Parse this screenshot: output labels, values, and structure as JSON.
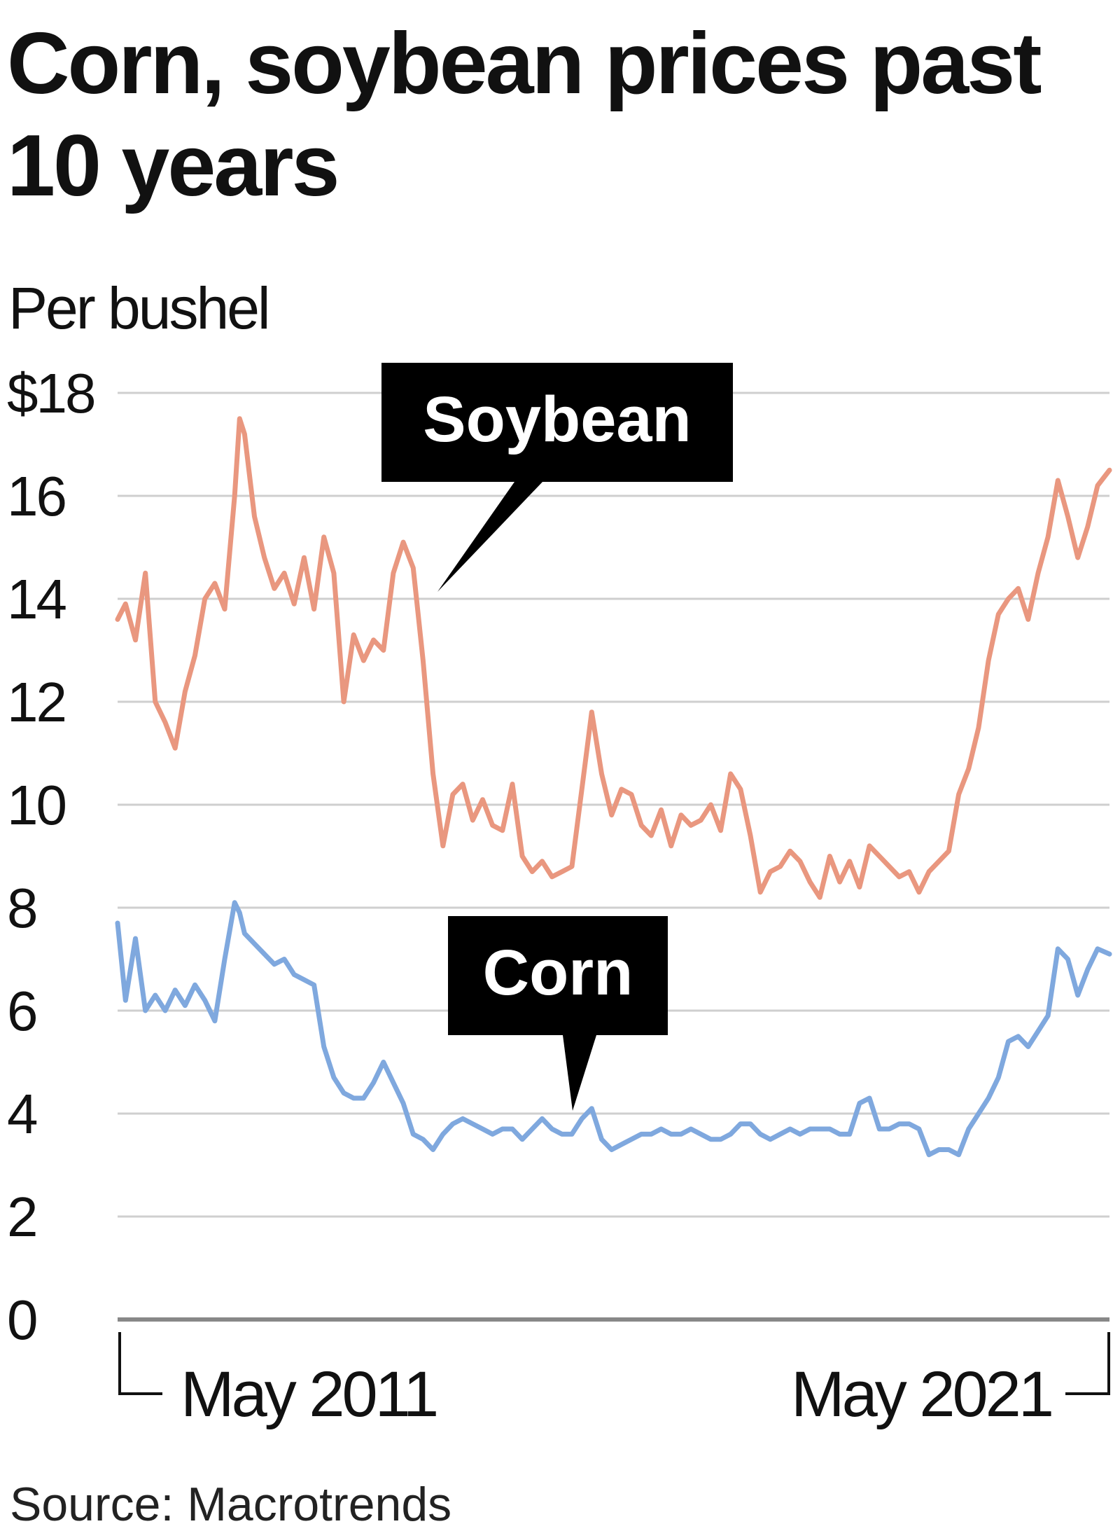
{
  "title": "Corn, soybean prices past 10 years",
  "unit_label": "Per bushel",
  "source": "Source: Macrotrends",
  "colors": {
    "soybean": "#E9977F",
    "corn": "#7FA8DE",
    "grid": "#cfcfcf",
    "callout": "#000000"
  },
  "chart_data": {
    "type": "line",
    "ylim": [
      0,
      18
    ],
    "y_ticks": [
      {
        "value": 18,
        "label": "$18"
      },
      {
        "value": 16,
        "label": "16"
      },
      {
        "value": 14,
        "label": "14"
      },
      {
        "value": 12,
        "label": "12"
      },
      {
        "value": 10,
        "label": "10"
      },
      {
        "value": 8,
        "label": "8"
      },
      {
        "value": 6,
        "label": "6"
      },
      {
        "value": 4,
        "label": "4"
      },
      {
        "value": 2,
        "label": "2"
      },
      {
        "value": 0,
        "label": "0"
      }
    ],
    "xlim": [
      2011.37,
      2021.37
    ],
    "x_labels": [
      "May 2011",
      "May 2021"
    ],
    "grid": true,
    "series": [
      {
        "name": "Soybean",
        "x": [
          2011.37,
          2011.45,
          2011.55,
          2011.65,
          2011.75,
          2011.85,
          2011.95,
          2012.05,
          2012.15,
          2012.25,
          2012.35,
          2012.45,
          2012.55,
          2012.6,
          2012.65,
          2012.75,
          2012.85,
          2012.95,
          2013.05,
          2013.15,
          2013.25,
          2013.35,
          2013.45,
          2013.55,
          2013.65,
          2013.75,
          2013.85,
          2013.95,
          2014.05,
          2014.15,
          2014.25,
          2014.35,
          2014.45,
          2014.55,
          2014.65,
          2014.75,
          2014.85,
          2014.95,
          2015.05,
          2015.15,
          2015.25,
          2015.35,
          2015.45,
          2015.55,
          2015.65,
          2015.75,
          2015.85,
          2015.95,
          2016.05,
          2016.15,
          2016.25,
          2016.35,
          2016.45,
          2016.55,
          2016.65,
          2016.75,
          2016.85,
          2016.95,
          2017.05,
          2017.15,
          2017.25,
          2017.35,
          2017.45,
          2017.55,
          2017.65,
          2017.75,
          2017.85,
          2017.95,
          2018.05,
          2018.15,
          2018.25,
          2018.35,
          2018.45,
          2018.55,
          2018.65,
          2018.75,
          2018.85,
          2018.95,
          2019.05,
          2019.15,
          2019.25,
          2019.35,
          2019.45,
          2019.55,
          2019.65,
          2019.75,
          2019.85,
          2019.95,
          2020.05,
          2020.15,
          2020.25,
          2020.35,
          2020.45,
          2020.55,
          2020.65,
          2020.75,
          2020.85,
          2020.95,
          2021.05,
          2021.15,
          2021.25,
          2021.37
        ],
        "values": [
          13.6,
          13.9,
          13.2,
          14.5,
          12.0,
          11.6,
          11.1,
          12.2,
          12.9,
          14.0,
          14.3,
          13.8,
          16.0,
          17.5,
          17.2,
          15.6,
          14.8,
          14.2,
          14.5,
          13.9,
          14.8,
          13.8,
          15.2,
          14.5,
          12.0,
          13.3,
          12.8,
          13.2,
          13.0,
          14.5,
          15.1,
          14.6,
          12.8,
          10.6,
          9.2,
          10.2,
          10.4,
          9.7,
          10.1,
          9.6,
          9.5,
          10.4,
          9.0,
          8.7,
          8.9,
          8.6,
          8.7,
          8.8,
          10.3,
          11.8,
          10.6,
          9.8,
          10.3,
          10.2,
          9.6,
          9.4,
          9.9,
          9.2,
          9.8,
          9.6,
          9.7,
          10.0,
          9.5,
          10.6,
          10.3,
          9.4,
          8.3,
          8.7,
          8.8,
          9.1,
          8.9,
          8.5,
          8.2,
          9.0,
          8.5,
          8.9,
          8.4,
          9.2,
          9.0,
          8.8,
          8.6,
          8.7,
          8.3,
          8.7,
          8.9,
          9.1,
          10.2,
          10.7,
          11.5,
          12.8,
          13.7,
          14.0,
          14.2,
          13.6,
          14.5,
          15.2,
          16.3,
          15.6,
          14.8,
          15.4,
          16.2,
          16.5
        ]
      },
      {
        "name": "Corn",
        "x": [
          2011.37,
          2011.45,
          2011.55,
          2011.65,
          2011.75,
          2011.85,
          2011.95,
          2012.05,
          2012.15,
          2012.25,
          2012.35,
          2012.45,
          2012.55,
          2012.6,
          2012.65,
          2012.75,
          2012.85,
          2012.95,
          2013.05,
          2013.15,
          2013.25,
          2013.35,
          2013.45,
          2013.55,
          2013.65,
          2013.75,
          2013.85,
          2013.95,
          2014.05,
          2014.15,
          2014.25,
          2014.35,
          2014.45,
          2014.55,
          2014.65,
          2014.75,
          2014.85,
          2014.95,
          2015.05,
          2015.15,
          2015.25,
          2015.35,
          2015.45,
          2015.55,
          2015.65,
          2015.75,
          2015.85,
          2015.95,
          2016.05,
          2016.15,
          2016.25,
          2016.35,
          2016.45,
          2016.55,
          2016.65,
          2016.75,
          2016.85,
          2016.95,
          2017.05,
          2017.15,
          2017.25,
          2017.35,
          2017.45,
          2017.55,
          2017.65,
          2017.75,
          2017.85,
          2017.95,
          2018.05,
          2018.15,
          2018.25,
          2018.35,
          2018.45,
          2018.55,
          2018.65,
          2018.75,
          2018.85,
          2018.95,
          2019.05,
          2019.15,
          2019.25,
          2019.35,
          2019.45,
          2019.55,
          2019.65,
          2019.75,
          2019.85,
          2019.95,
          2020.05,
          2020.15,
          2020.25,
          2020.35,
          2020.45,
          2020.55,
          2020.65,
          2020.75,
          2020.85,
          2020.95,
          2021.05,
          2021.15,
          2021.25,
          2021.37
        ],
        "values": [
          7.7,
          6.2,
          7.4,
          6.0,
          6.3,
          6.0,
          6.4,
          6.1,
          6.5,
          6.2,
          5.8,
          7.0,
          8.1,
          7.9,
          7.5,
          7.3,
          7.1,
          6.9,
          7.0,
          6.7,
          6.6,
          6.5,
          5.3,
          4.7,
          4.4,
          4.3,
          4.3,
          4.6,
          5.0,
          4.6,
          4.2,
          3.6,
          3.5,
          3.3,
          3.6,
          3.8,
          3.9,
          3.8,
          3.7,
          3.6,
          3.7,
          3.7,
          3.5,
          3.7,
          3.9,
          3.7,
          3.6,
          3.6,
          3.9,
          4.1,
          3.5,
          3.3,
          3.4,
          3.5,
          3.6,
          3.6,
          3.7,
          3.6,
          3.6,
          3.7,
          3.6,
          3.5,
          3.5,
          3.6,
          3.8,
          3.8,
          3.6,
          3.5,
          3.6,
          3.7,
          3.6,
          3.7,
          3.7,
          3.7,
          3.6,
          3.6,
          4.2,
          4.3,
          3.7,
          3.7,
          3.8,
          3.8,
          3.7,
          3.2,
          3.3,
          3.3,
          3.2,
          3.7,
          4.0,
          4.3,
          4.7,
          5.4,
          5.5,
          5.3,
          5.6,
          5.9,
          7.2,
          7.0,
          6.3,
          6.8,
          7.2,
          7.1
        ]
      }
    ],
    "annotations": [
      {
        "text": "Soybean",
        "series": "Soybean"
      },
      {
        "text": "Corn",
        "series": "Corn"
      }
    ]
  }
}
